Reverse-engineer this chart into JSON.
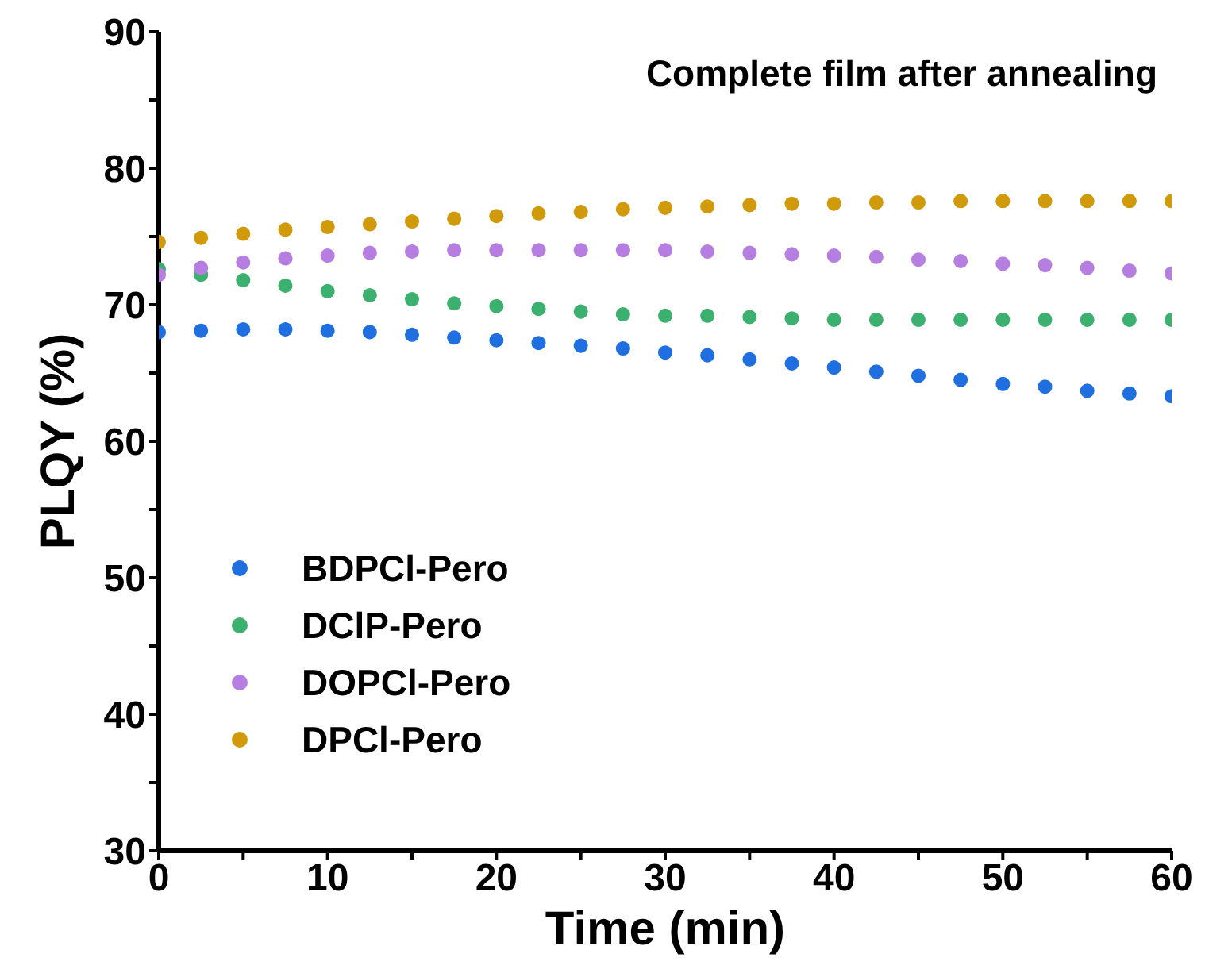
{
  "chart_data": {
    "type": "scatter",
    "xlabel": "Time (min)",
    "ylabel": "PLQY (%)",
    "annotations": [
      "Complete film after annealing"
    ],
    "x": [
      0,
      2.5,
      5,
      7.5,
      10,
      12.5,
      15,
      17.5,
      20,
      22.5,
      25,
      27.5,
      30,
      32.5,
      35,
      37.5,
      40,
      42.5,
      45,
      47.5,
      50,
      52.5,
      55,
      57.5,
      60
    ],
    "series": [
      {
        "name": "BDPCl-Pero",
        "color": "#1f6fe0",
        "values": [
          68.0,
          68.1,
          68.2,
          68.2,
          68.1,
          68.0,
          67.8,
          67.6,
          67.4,
          67.2,
          67.0,
          66.8,
          66.5,
          66.3,
          66.0,
          65.7,
          65.4,
          65.1,
          64.8,
          64.5,
          64.2,
          64.0,
          63.7,
          63.5,
          63.3
        ]
      },
      {
        "name": "DClP-Pero",
        "color": "#3cb06e",
        "values": [
          72.6,
          72.2,
          71.8,
          71.4,
          71.0,
          70.7,
          70.4,
          70.1,
          69.9,
          69.7,
          69.5,
          69.3,
          69.2,
          69.2,
          69.1,
          69.0,
          68.9,
          68.9,
          68.9,
          68.9,
          68.9,
          68.9,
          68.9,
          68.9,
          68.9
        ]
      },
      {
        "name": "DOPCl-Pero",
        "color": "#b57ee0",
        "values": [
          72.2,
          72.7,
          73.1,
          73.4,
          73.6,
          73.8,
          73.9,
          74.0,
          74.0,
          74.0,
          74.0,
          74.0,
          74.0,
          73.9,
          73.8,
          73.7,
          73.6,
          73.5,
          73.3,
          73.2,
          73.0,
          72.9,
          72.7,
          72.5,
          72.3
        ]
      },
      {
        "name": "DPCl-Pero",
        "color": "#d19a0a",
        "values": [
          74.6,
          74.9,
          75.2,
          75.5,
          75.7,
          75.9,
          76.1,
          76.3,
          76.5,
          76.7,
          76.8,
          77.0,
          77.1,
          77.2,
          77.3,
          77.4,
          77.4,
          77.5,
          77.5,
          77.6,
          77.6,
          77.6,
          77.6,
          77.6,
          77.6
        ]
      }
    ],
    "xlim": [
      0,
      60
    ],
    "xticks": [
      0,
      {
        "value": 5,
        "label": null
      },
      10,
      {
        "value": 15,
        "label": null
      },
      20,
      {
        "value": 25,
        "label": null
      },
      30,
      {
        "value": 35,
        "label": null
      },
      40,
      {
        "value": 45,
        "label": null
      },
      50,
      {
        "value": 55,
        "label": null
      },
      60
    ],
    "ylim": [
      30,
      90
    ],
    "yticks": [
      30,
      {
        "value": 35,
        "label": null
      },
      40,
      {
        "value": 45,
        "label": null
      },
      50,
      {
        "value": 55,
        "label": null
      },
      60,
      {
        "value": 65,
        "label": null
      },
      70,
      {
        "value": 75,
        "label": null
      },
      80,
      {
        "value": 85,
        "label": null
      },
      90
    ],
    "grid": false,
    "legend": "left",
    "marker": "circle"
  }
}
